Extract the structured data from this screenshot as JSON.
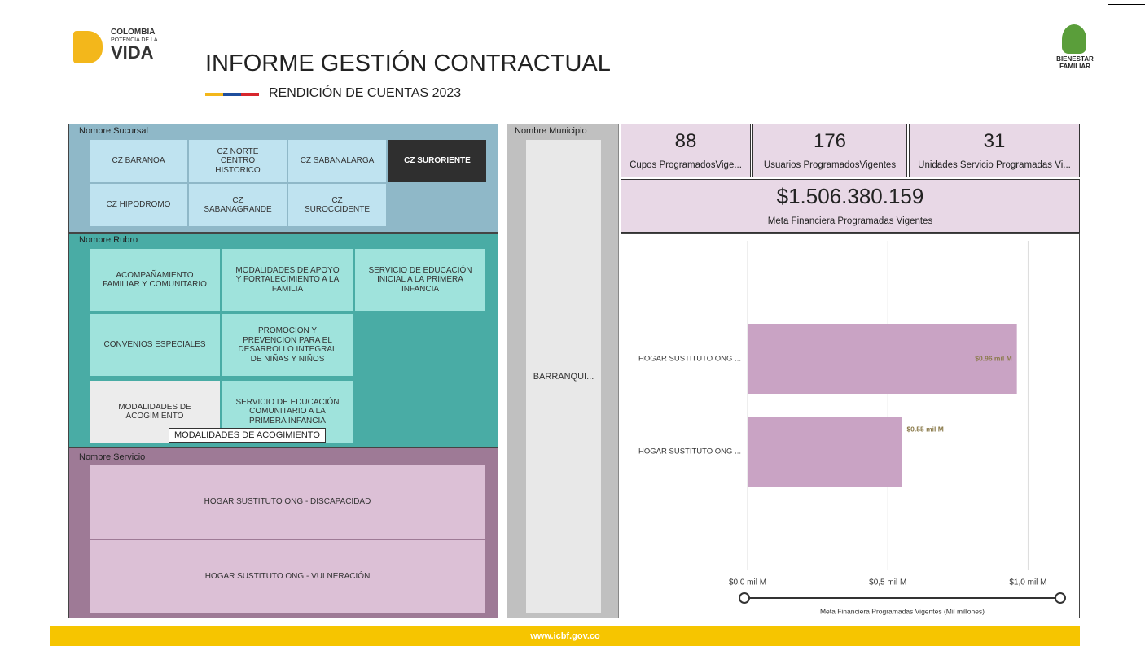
{
  "logos": {
    "colombia": [
      "COLOMBIA",
      "POTENCIA DE LA",
      "VIDA"
    ],
    "icbf": [
      "BIENESTAR",
      "FAMILIAR"
    ]
  },
  "header": {
    "title": "INFORME GESTIÓN CONTRACTUAL",
    "subtitle": "RENDICIÓN DE CUENTAS 2023",
    "footer": "www.icbf.gov.co"
  },
  "sucursal": {
    "label": "Nombre Sucursal",
    "items": [
      "CZ BARANOA",
      "CZ NORTE CENTRO HISTORICO",
      "CZ SABANALARGA",
      "CZ SURORIENTE",
      "CZ HIPODROMO",
      "CZ SABANAGRANDE",
      "CZ SUROCCIDENTE"
    ],
    "selected": 3
  },
  "rubro": {
    "label": "Nombre Rubro",
    "items": [
      "ACOMPAÑAMIENTO FAMILIAR Y COMUNITARIO",
      "MODALIDADES DE APOYO Y FORTALECIMIENTO A LA FAMILIA",
      "SERVICIO DE EDUCACIÓN INICIAL A LA PRIMERA INFANCIA",
      "CONVENIOS ESPECIALES",
      "PROMOCION Y PREVENCION PARA EL DESARROLLO INTEGRAL DE NIÑAS Y NIÑOS",
      "MODALIDADES DE ACOGIMIENTO",
      "SERVICIO DE EDUCACIÓN COMUNITARIO A LA PRIMERA INFANCIA"
    ],
    "hovered": 5,
    "tooltip": "MODALIDADES DE ACOGIMIENTO"
  },
  "servicio": {
    "label": "Nombre Servicio",
    "items": [
      "HOGAR SUSTITUTO ONG - DISCAPACIDAD",
      "HOGAR SUSTITUTO ONG - VULNERACIÓN"
    ]
  },
  "municipio": {
    "label": "Nombre Municipio",
    "items": [
      "BARRANQUI..."
    ]
  },
  "kpis": [
    {
      "value": 88,
      "label": "Cupos ProgramadosVige..."
    },
    {
      "value": 176,
      "label": "Usuarios ProgramadosVigentes"
    },
    {
      "value": 31,
      "label": "Unidades Servicio Programadas Vi..."
    }
  ],
  "meta": {
    "value": "$1.506.380.159",
    "label": "Meta Financiera Programadas Vigentes"
  },
  "chart": {
    "type": "bar",
    "categories": [
      "HOGAR SUSTITUTO ONG ...",
      "HOGAR SUSTITUTO ONG ..."
    ],
    "values": [
      0.96,
      0.55
    ],
    "value_labels": [
      "$0.96 mil M",
      "$0.55 mil M"
    ],
    "color": "#c9a3c4",
    "xlim": [
      0,
      1.08
    ],
    "xticks": [
      {
        "value": 0,
        "label": "$0,0 mil M"
      },
      {
        "value": 0.5,
        "label": "$0,5 mil M"
      },
      {
        "value": 1,
        "label": "$1,0 mil M"
      }
    ],
    "xlabel": "Meta Financiera Programadas Vigentes (Mil millones)",
    "grid": true
  }
}
